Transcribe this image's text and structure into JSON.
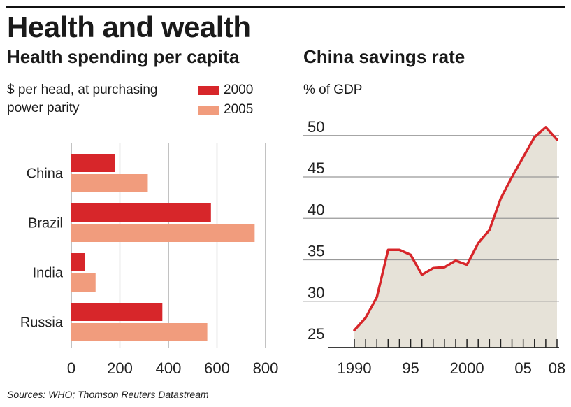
{
  "title": "Health and wealth",
  "source": "Sources: WHO; Thomson Reuters Datastream",
  "colors": {
    "series_2000": "#d7262a",
    "series_2005": "#f19c7d",
    "line": "#d7262a",
    "area": "#e6e2d8",
    "grid": "#999999"
  },
  "chart_data": [
    {
      "type": "bar",
      "orientation": "horizontal",
      "title": "Health spending per capita",
      "unit": "$ per head, at purchasing power parity",
      "categories": [
        "China",
        "Brazil",
        "India",
        "Russia"
      ],
      "series": [
        {
          "name": "2000",
          "values": [
            180,
            575,
            55,
            375
          ]
        },
        {
          "name": "2005",
          "values": [
            315,
            755,
            100,
            560
          ]
        }
      ],
      "xlim": [
        0,
        800
      ],
      "xticks": [
        "0",
        "200",
        "400",
        "600",
        "800"
      ],
      "grid": true,
      "legend": "top-right"
    },
    {
      "type": "area",
      "title": "China savings rate",
      "unit": "% of GDP",
      "x": [
        1990,
        1991,
        1992,
        1993,
        1994,
        1995,
        1996,
        1997,
        1998,
        1999,
        2000,
        2001,
        2002,
        2003,
        2004,
        2005,
        2006,
        2007,
        2008
      ],
      "y": [
        26.5,
        28.0,
        30.5,
        36.2,
        36.2,
        35.6,
        33.2,
        34.0,
        34.1,
        34.9,
        34.4,
        37.0,
        38.6,
        42.4,
        45.0,
        47.4,
        49.8,
        51.0,
        49.5
      ],
      "ylim": [
        25,
        51
      ],
      "yticks": [
        "25",
        "30",
        "35",
        "40",
        "45",
        "50"
      ],
      "xticks": [
        "1990",
        "95",
        "2000",
        "05",
        "08"
      ],
      "grid": true
    }
  ]
}
